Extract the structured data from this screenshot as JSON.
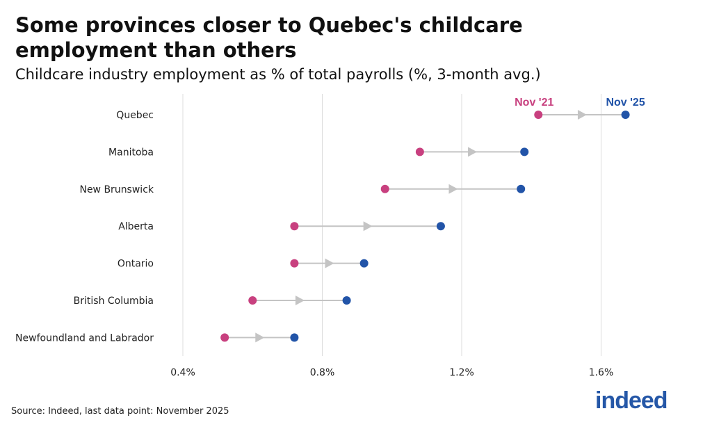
{
  "title": "Some provinces closer to Quebec's childcare employment than others",
  "subtitle": "Childcare industry employment as % of total payrolls (%, 3-month avg.)",
  "source": "Source: Indeed, last data point: November 2025",
  "logo": "indeed",
  "chart_data": {
    "type": "dumbbell",
    "categories": [
      "Quebec",
      "Manitoba",
      "New Brunswick",
      "Alberta",
      "Ontario",
      "British Columbia",
      "Newfoundland and Labrador"
    ],
    "series": [
      {
        "name": "Nov '21",
        "color": "#c8407f",
        "values": [
          1.42,
          1.08,
          0.98,
          0.72,
          0.72,
          0.6,
          0.52
        ]
      },
      {
        "name": "Nov '25",
        "color": "#2254a8",
        "values": [
          1.67,
          1.38,
          1.37,
          1.14,
          0.92,
          0.87,
          0.72
        ]
      }
    ],
    "xlim": [
      0.4,
      1.8
    ],
    "xticks": [
      0.4,
      0.8,
      1.2,
      1.6
    ],
    "xtick_labels": [
      "0.4%",
      "0.8%",
      "1.2%",
      "1.6%"
    ],
    "grid": "vertical",
    "legend": "direct labels above top row"
  }
}
